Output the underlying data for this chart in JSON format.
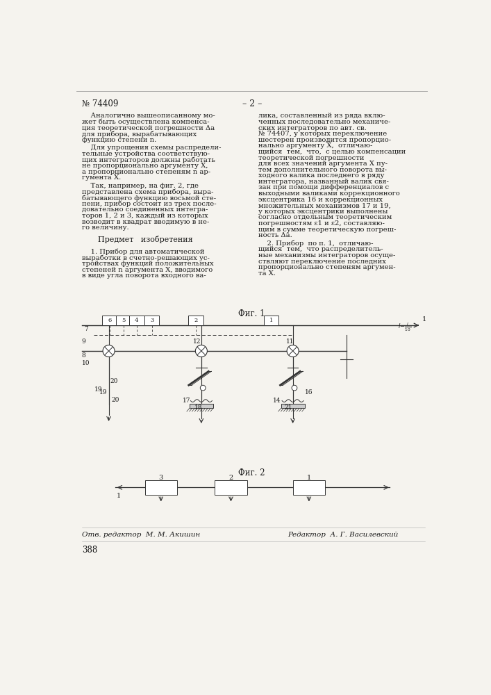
{
  "background_color": "#f5f3ee",
  "text_color": "#1a1a1a",
  "line_color": "#333333",
  "page_number": "№ 74409",
  "page_dash": "– 2 –",
  "fig1_label": "Фиг. 1",
  "fig2_label": "Фиг. 2",
  "footer_left": "Отв. редактор  М. М. Акишин",
  "footer_right": "Редактор  А. Г. Василевский",
  "footer_number": "388",
  "col1_paras": [
    "    Аналогично вышеописанному мо-\nжет быть осуществлена компенса-\nция теоретической погрешности Δа\nдля прибора, вырабатывающих\nфункцию степени n.",
    "    Для упрощения схемы распредели-\nтельные устройства соответствую-\nщих интеграторов должны работать\nне пропорционально аргументу X,\nа пропорционально степеням n ар-\nгумента X.",
    "    Так, например, на фиг. 2, где\nпредставлена схема прибора, выра-\nбатывающего функцию восьмой сте-\nпени, прибор состоит из трех после-\nдовательно соединенных интегра-\nторов 1, 2 и 3, каждый из которых\nвозводит в квадрат вводимую в не-\nго величину."
  ],
  "predmet_title": "Предмет   изобретения",
  "col1_patent": "    1. Прибор для автоматической\nвыработки в счетно-решающих ус-\nтройствах функций положительных\nстепеней n аргумента X, вводимого\nв виде угла поворота входного ва-",
  "col2_paras": [
    "лика, составленный из ряда вклю-\nченных последовательно механиче-\nских интеграторов по авт. св.\n№ 74407, у которых переключение\nшестерен производится пропорцио-\nнально аргументу X,  отличаю-\nщийся  тем,  что,  с целью компенсации\nтеоретической погрешности\nдля всех значений аргумента X пу-\nтем дополнительного поворота вы-\nходного валика последнего в ряду\nинтегратора, названный валик свя-\nзан при помощи дифференциалов с\nвыходными валиками коррекционного\nэксцентрика 16 и коррекционных\nмножительных механизмов 17 и 19,\nу которых эксцентрики выполнены\nсогласно отдельным теоретическим\nпогрешностям ε1 и ε2, составляю-\nщим в сумме теоретическую погреш-\nность Δа.",
    "    2. Прибор  по п. 1,  отличаю-\nщийся  тем,  что распределитель-\nные механизмы интеграторов осуще-\nствляют переключение последних\nпропорционально степеням аргумен-\nта X."
  ]
}
